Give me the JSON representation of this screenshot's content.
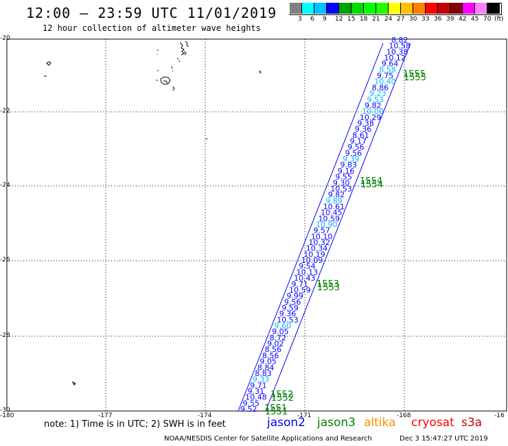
{
  "header": {
    "title": "12:00 — 23:59 UTC 11/01/2019",
    "subtitle": "12 hour collection of altimeter wave heights"
  },
  "legend": {
    "colors": [
      "#808080",
      "#00ffff",
      "#00c0ff",
      "#0000ff",
      "#00a000",
      "#00d800",
      "#00ff00",
      "#20ff00",
      "#ffff00",
      "#ffc000",
      "#ff8000",
      "#ff0000",
      "#c00000",
      "#800000",
      "#ff00ff",
      "#ff80ff",
      "#000000"
    ],
    "labels": [
      "3",
      "6",
      "9",
      "12",
      "15",
      "18",
      "21",
      "24",
      "27",
      "30",
      "33",
      "36",
      "39",
      "42",
      "45",
      "70",
      "(ft)"
    ]
  },
  "axes": {
    "lon_ticks": [
      "-180",
      "-177",
      "-174",
      "-171",
      "-168",
      "-16"
    ],
    "lat_ticks": [
      "-20",
      "-22",
      "-24",
      "-26",
      "-28",
      "-30"
    ]
  },
  "track": {
    "color_dark": "#0000ff",
    "color_light": "#00b4ff",
    "values": [
      "8.82",
      "10.58",
      "10.38",
      "10.12",
      "9.64",
      "8.58",
      "9.75",
      "10.40",
      "8.86",
      "9.23",
      "9.53",
      "9.82",
      "10.00",
      "10.29",
      "9.38",
      "9.36",
      "8.61",
      "9.17",
      "9.56",
      "9.56",
      "9.39",
      "9.83",
      "9.16",
      "9.55",
      "9.30",
      "10.53",
      "9.82",
      "9.89",
      "10.61",
      "10.45",
      "10.59",
      "10.90",
      "9.57",
      "10.10",
      "10.32",
      "10.34",
      "10.19",
      "10.09",
      "9.54",
      "10.13",
      "10.43",
      "9.71",
      "10.59",
      "9.99",
      "9.56",
      "9.59",
      "9.36",
      "10.53",
      "9.60",
      "9.05",
      "8.72",
      "9.02",
      "8.56",
      "8.56",
      "9.05",
      "8.84",
      "8.83",
      "9.33",
      "9.71",
      "9.31",
      "10.48",
      "9.55",
      "9.52"
    ]
  },
  "pass_labels": [
    "1555",
    "1554",
    "1553",
    "1552",
    "1551"
  ],
  "footer": {
    "note": "note:  1) Time is in UTC;  2) SWH is in feet",
    "satellites": [
      {
        "name": "jason2",
        "color": "#0000ff"
      },
      {
        "name": "jason3",
        "color": "#008000"
      },
      {
        "name": "altika",
        "color": "#ff8c00"
      },
      {
        "name": "cryosat",
        "color": "#ff0000"
      },
      {
        "name": "s3a",
        "color": "#c00000"
      }
    ],
    "credit": "NOAA/NESDIS Center for Satellite Applications and Research",
    "stamp": "Dec  3 15:47:27 UTC 2019"
  }
}
